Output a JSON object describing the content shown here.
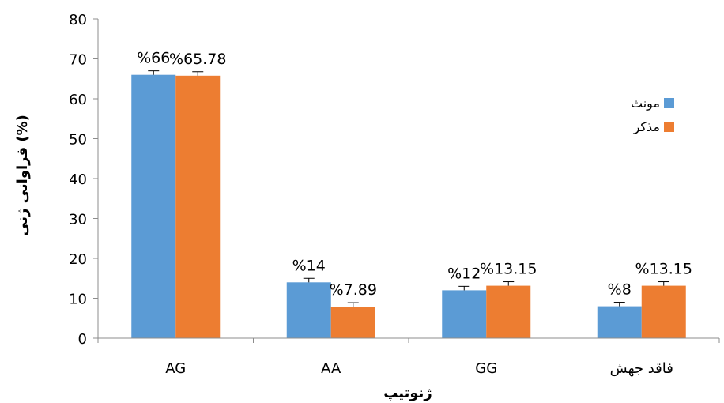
{
  "chart_data": {
    "type": "bar",
    "categories": [
      "AG",
      "AA",
      "GG",
      "فاقد جهش"
    ],
    "series": [
      {
        "name": "مونث",
        "values": [
          66,
          14,
          12,
          8
        ],
        "labels": [
          "%66",
          "%14",
          "%12",
          "%8"
        ],
        "errors": [
          1,
          1,
          1,
          1
        ],
        "color": "#5B9BD5"
      },
      {
        "name": "مذکر",
        "values": [
          65.78,
          7.89,
          13.15,
          13.15
        ],
        "labels": [
          "%65.78",
          "%7.89",
          "%13.15",
          "%13.15"
        ],
        "errors": [
          1,
          1,
          1,
          1
        ],
        "color": "#ED7D31"
      }
    ],
    "xlabel": "ژنوتیپ",
    "ylabel": "فراوانی ژنی (%)",
    "ylim": [
      0,
      80
    ],
    "yticks": [
      0,
      10,
      20,
      30,
      40,
      50,
      60,
      70,
      80
    ],
    "grid": false,
    "legend_position": "right"
  }
}
